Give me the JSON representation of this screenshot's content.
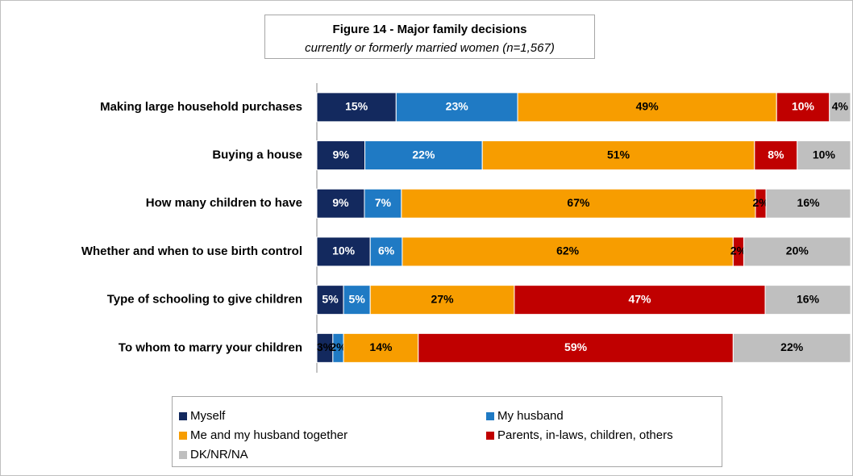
{
  "chart_data": {
    "type": "stacked-barh",
    "title": "Figure 14 - Major family decisions",
    "subtitle": "currently or formerly married women (n=1,567)",
    "categories": [
      "Making large household purchases",
      "Buying a house",
      "How many children to have",
      "Whether and when to use birth control",
      "Type of schooling to give children",
      "To whom to marry your children"
    ],
    "series": [
      {
        "name": "Myself",
        "color": "#13295e",
        "values": [
          15,
          9,
          9,
          10,
          5,
          3
        ],
        "value_labels": [
          "15%",
          "9%",
          "9%",
          "10%",
          "5%",
          "3%"
        ]
      },
      {
        "name": "My husband",
        "color": "#1f7ac4",
        "values": [
          23,
          22,
          7,
          6,
          5,
          2
        ],
        "value_labels": [
          "23%",
          "22%",
          "7%",
          "6%",
          "5%",
          "2%"
        ]
      },
      {
        "name": "Me and my husband together",
        "color": "#f79d00",
        "values": [
          49,
          51,
          67,
          62,
          27,
          14
        ],
        "value_labels": [
          "49%",
          "51%",
          "67%",
          "62%",
          "27%",
          "14%"
        ]
      },
      {
        "name": "Parents, in-laws, children, others",
        "color": "#c00000",
        "values": [
          10,
          8,
          2,
          2,
          47,
          59
        ],
        "value_labels": [
          "10%",
          "8%",
          "2%",
          "2%",
          "47%",
          "59%"
        ]
      },
      {
        "name": "DK/NR/NA",
        "color": "#bfbfbf",
        "values": [
          4,
          10,
          16,
          20,
          16,
          22
        ],
        "value_labels": [
          "4%",
          "10%",
          "16%",
          "20%",
          "16%",
          "22%"
        ]
      }
    ]
  }
}
